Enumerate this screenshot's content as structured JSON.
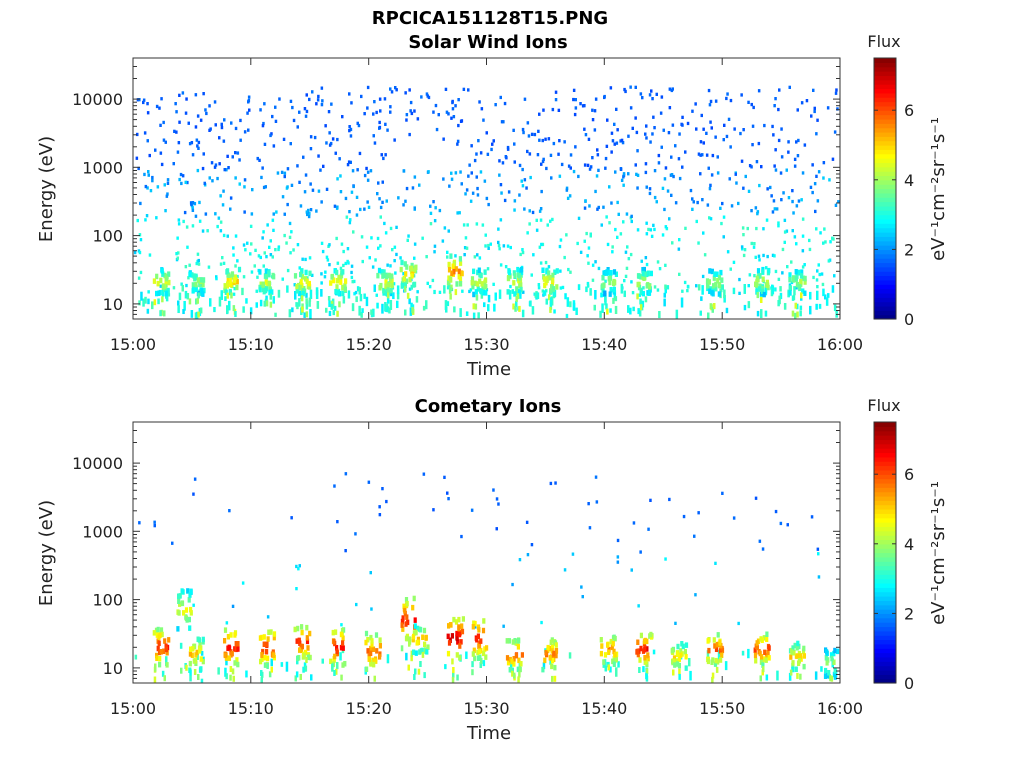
{
  "figure": {
    "title": "RPCICA151128T15.PNG"
  },
  "chart_data": [
    {
      "type": "heatmap",
      "title": "Solar Wind Ions",
      "xlabel": "Time",
      "ylabel": "Energy (eV)",
      "xlim": [
        "15:00",
        "16:00"
      ],
      "x_ticks": [
        "15:00",
        "15:10",
        "15:20",
        "15:30",
        "15:40",
        "15:50",
        "16:00"
      ],
      "ylim": [
        6,
        40000
      ],
      "y_scale": "log",
      "y_ticks": [
        "10",
        "100",
        "1000",
        "10000"
      ],
      "colorbar": {
        "title": "Flux",
        "unit": "eV⁻¹cm⁻²sr⁻¹s⁻¹",
        "range": [
          0,
          7.5
        ],
        "ticks": [
          "0",
          "2",
          "4",
          "6"
        ],
        "colormap": "jet"
      },
      "bursts": [
        {
          "t": "15:02",
          "energy_eV": [
            15,
            35
          ],
          "flux": 4.6
        },
        {
          "t": "15:05",
          "energy_eV": [
            15,
            35
          ],
          "flux": 4.0
        },
        {
          "t": "15:08",
          "energy_eV": [
            15,
            35
          ],
          "flux": 5.0
        },
        {
          "t": "15:11",
          "energy_eV": [
            15,
            35
          ],
          "flux": 4.4
        },
        {
          "t": "15:14",
          "energy_eV": [
            15,
            35
          ],
          "flux": 4.8
        },
        {
          "t": "15:17",
          "energy_eV": [
            15,
            35
          ],
          "flux": 4.8
        },
        {
          "t": "15:21",
          "energy_eV": [
            15,
            35
          ],
          "flux": 4.6
        },
        {
          "t": "15:23",
          "energy_eV": [
            20,
            45
          ],
          "flux": 5.0
        },
        {
          "t": "15:27",
          "energy_eV": [
            20,
            55
          ],
          "flux": 5.6
        },
        {
          "t": "15:29",
          "energy_eV": [
            15,
            35
          ],
          "flux": 4.4
        },
        {
          "t": "15:32",
          "energy_eV": [
            15,
            35
          ],
          "flux": 4.6
        },
        {
          "t": "15:35",
          "energy_eV": [
            15,
            35
          ],
          "flux": 4.8
        },
        {
          "t": "15:40",
          "energy_eV": [
            15,
            35
          ],
          "flux": 4.0
        },
        {
          "t": "15:43",
          "energy_eV": [
            15,
            35
          ],
          "flux": 4.4
        },
        {
          "t": "15:49",
          "energy_eV": [
            15,
            35
          ],
          "flux": 4.0
        },
        {
          "t": "15:53",
          "energy_eV": [
            15,
            35
          ],
          "flux": 4.4
        },
        {
          "t": "15:56",
          "energy_eV": [
            15,
            35
          ],
          "flux": 4.0
        }
      ]
    },
    {
      "type": "heatmap",
      "title": "Cometary Ions",
      "xlabel": "Time",
      "ylabel": "Energy (eV)",
      "xlim": [
        "15:00",
        "16:00"
      ],
      "x_ticks": [
        "15:00",
        "15:10",
        "15:20",
        "15:30",
        "15:40",
        "15:50",
        "16:00"
      ],
      "ylim": [
        6,
        40000
      ],
      "y_scale": "log",
      "y_ticks": [
        "10",
        "100",
        "1000",
        "10000"
      ],
      "colorbar": {
        "title": "Flux",
        "unit": "eV⁻¹cm⁻²sr⁻¹s⁻¹",
        "range": [
          0,
          7.5
        ],
        "ticks": [
          "0",
          "2",
          "4",
          "6"
        ],
        "colormap": "jet"
      },
      "bursts": [
        {
          "t": "15:02",
          "energy_eV": [
            12,
            40
          ],
          "flux": 6.5
        },
        {
          "t": "15:04",
          "energy_eV": [
            40,
            150
          ],
          "flux": 4.6
        },
        {
          "t": "15:05",
          "energy_eV": [
            10,
            30
          ],
          "flux": 5.2
        },
        {
          "t": "15:08",
          "energy_eV": [
            12,
            40
          ],
          "flux": 6.6
        },
        {
          "t": "15:11",
          "energy_eV": [
            12,
            40
          ],
          "flux": 6.5
        },
        {
          "t": "15:14",
          "energy_eV": [
            15,
            45
          ],
          "flux": 6.4
        },
        {
          "t": "15:17",
          "energy_eV": [
            12,
            40
          ],
          "flux": 6.6
        },
        {
          "t": "15:20",
          "energy_eV": [
            10,
            35
          ],
          "flux": 6.0
        },
        {
          "t": "15:23",
          "energy_eV": [
            25,
            120
          ],
          "flux": 6.4
        },
        {
          "t": "15:24",
          "energy_eV": [
            18,
            45
          ],
          "flux": 5.2
        },
        {
          "t": "15:27",
          "energy_eV": [
            15,
            60
          ],
          "flux": 7.0
        },
        {
          "t": "15:29",
          "energy_eV": [
            15,
            60
          ],
          "flux": 6.5
        },
        {
          "t": "15:32",
          "energy_eV": [
            10,
            30
          ],
          "flux": 6.0
        },
        {
          "t": "15:35",
          "energy_eV": [
            10,
            30
          ],
          "flux": 5.8
        },
        {
          "t": "15:40",
          "energy_eV": [
            12,
            35
          ],
          "flux": 5.6
        },
        {
          "t": "15:43",
          "energy_eV": [
            12,
            35
          ],
          "flux": 6.6
        },
        {
          "t": "15:46",
          "energy_eV": [
            10,
            25
          ],
          "flux": 5.0
        },
        {
          "t": "15:49",
          "energy_eV": [
            12,
            35
          ],
          "flux": 6.0
        },
        {
          "t": "15:53",
          "energy_eV": [
            12,
            35
          ],
          "flux": 6.2
        },
        {
          "t": "15:56",
          "energy_eV": [
            10,
            25
          ],
          "flux": 5.0
        },
        {
          "t": "15:59",
          "energy_eV": [
            8,
            20
          ],
          "flux": 4.2
        }
      ]
    }
  ]
}
